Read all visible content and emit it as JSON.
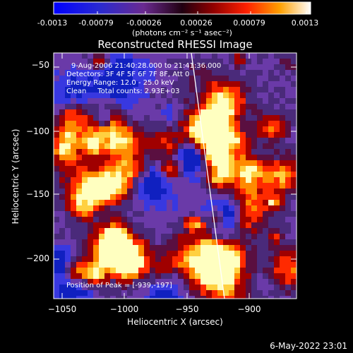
{
  "colorbar": {
    "ticks": [
      "-0.0013",
      "-0.00079",
      "-0.00026",
      "0.00026",
      "0.00079",
      "0.0013"
    ],
    "unit": "(photons cm⁻² s⁻¹ asec⁻²)"
  },
  "title": "Reconstructed RHESSI Image",
  "annotations": {
    "time": "9-Aug-2006 21:40:28.000 to 21:41:36.000",
    "detectors": "Detectors: 3F 4F 5F 6F 7F 8F, Att 0",
    "energy": "Energy Range: 12.0 - 25.0 keV",
    "clean": "Clean     Total counts: 2.93E+03",
    "peak": "Position of Peak = [-939,-197]"
  },
  "axes": {
    "xlabel": "Heliocentric X (arcsec)",
    "ylabel": "Heliocentric Y (arcsec)",
    "xticks": [
      "−1050",
      "−1000",
      "−950",
      "−900"
    ],
    "yticks": [
      "−50",
      "−100",
      "−150",
      "−200"
    ]
  },
  "footer": {
    "timestamp": "6-May-2022 23:01"
  },
  "colors": {
    "background": "#000000",
    "text": "#ffffff",
    "colormap": [
      "#0000c0",
      "#3030ff",
      "#7040a0",
      "#501050",
      "#800000",
      "#ff3000",
      "#ff9000",
      "#ffff80",
      "#ffffff"
    ]
  }
}
